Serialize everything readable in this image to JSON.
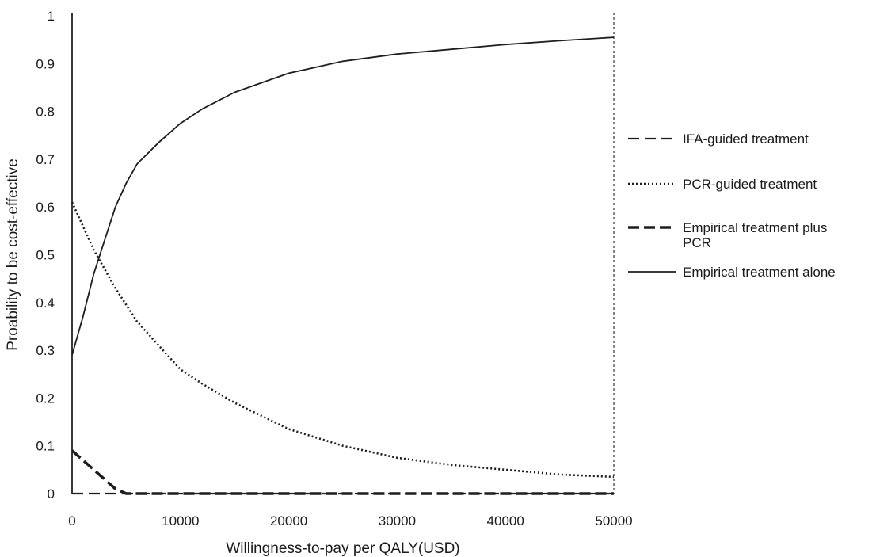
{
  "chart_data": {
    "type": "line",
    "title": "",
    "xlabel": "Willingness-to-pay per QALY(USD)",
    "ylabel": "Proability  to be cost-effective",
    "xlim": [
      0,
      50000
    ],
    "ylim": [
      0,
      1
    ],
    "x_ticks": [
      "0",
      "10000",
      "20000",
      "30000",
      "40000",
      "50000"
    ],
    "y_ticks": [
      "0",
      "0.1",
      "0.2",
      "0.3",
      "0.4",
      "0.5",
      "0.6",
      "0.7",
      "0.8",
      "0.9",
      "1"
    ],
    "grid": false,
    "legend_position": "right",
    "series": [
      {
        "name": "IFA-guided treatment",
        "style": "dashed",
        "x": [
          0,
          10000,
          20000,
          30000,
          40000,
          50000
        ],
        "y": [
          0,
          0,
          0,
          0,
          0,
          0
        ]
      },
      {
        "name": "PCR-guided treatment",
        "style": "dotted",
        "x": [
          0,
          2000,
          4000,
          6000,
          8000,
          10000,
          12000,
          15000,
          20000,
          25000,
          30000,
          35000,
          40000,
          45000,
          50000
        ],
        "y": [
          0.61,
          0.51,
          0.43,
          0.36,
          0.31,
          0.26,
          0.23,
          0.19,
          0.135,
          0.1,
          0.075,
          0.06,
          0.05,
          0.04,
          0.035
        ]
      },
      {
        "name": "Empirical treatment plus\nPCR",
        "style": "heavy-dashed",
        "x": [
          0,
          2000,
          4000,
          5000,
          10000,
          20000,
          30000,
          40000,
          50000
        ],
        "y": [
          0.09,
          0.05,
          0.01,
          0,
          0,
          0,
          0,
          0,
          0
        ]
      },
      {
        "name": "Empirical treatment alone",
        "style": "solid",
        "x": [
          0,
          1000,
          2000,
          3000,
          4000,
          5000,
          6000,
          8000,
          10000,
          12000,
          15000,
          20000,
          25000,
          30000,
          35000,
          40000,
          45000,
          50000
        ],
        "y": [
          0.29,
          0.37,
          0.46,
          0.53,
          0.6,
          0.65,
          0.69,
          0.735,
          0.775,
          0.805,
          0.84,
          0.88,
          0.905,
          0.92,
          0.93,
          0.94,
          0.948,
          0.955
        ]
      }
    ]
  }
}
